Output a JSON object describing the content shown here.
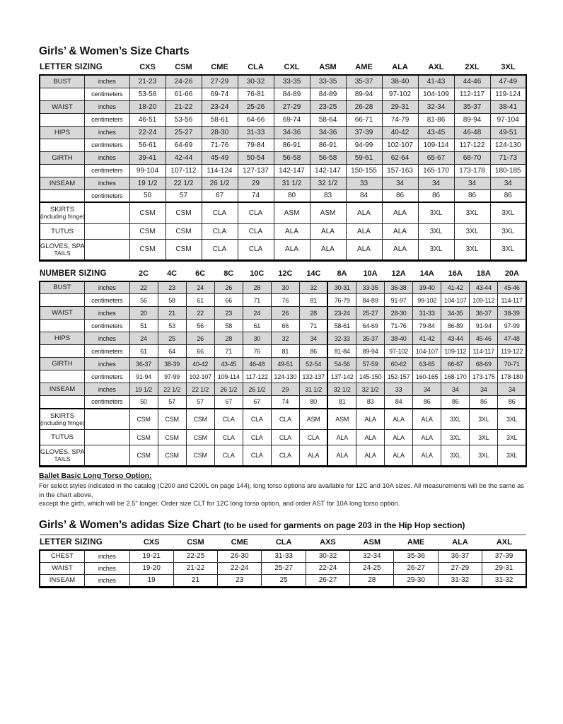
{
  "page": {
    "title": "Girls’ & Women’s Size Charts",
    "ballet_note": {
      "title": "Ballet Basic Long Torso Option:",
      "lines": [
        "For select styles indicated in the catalog (C200 and C200L on page 144), long torso options are available for 12C and 10A sizes. All measurements will be the same as in the chart above,",
        "except the girth, which will be 2.5\" longer. Order size CLT for 12C long torso option, and order AST for 10A long torso option."
      ]
    },
    "adidas_title": "Girls’ & Women’s adidas Size Chart",
    "adidas_title_note": "(to be used for garments on page 203 in the Hip Hop section)",
    "colors": {
      "row_shading": "#d8d8d8",
      "border": "#000000",
      "text": "#1a1a1a"
    }
  },
  "letter_table": {
    "header_label": "LETTER SIZING",
    "columns": [
      "CXS",
      "CSM",
      "CME",
      "CLA",
      "CXL",
      "ASM",
      "AME",
      "ALA",
      "AXL",
      "2XL",
      "3XL"
    ],
    "rows": [
      {
        "label": "BUST",
        "unit": "inches",
        "shaded": true,
        "values": [
          "21-23",
          "24-26",
          "27-29",
          "30-32",
          "33-35",
          "33-35",
          "35-37",
          "38-40",
          "41-43",
          "44-46",
          "47-49"
        ]
      },
      {
        "label": "",
        "unit": "centimeters",
        "shaded": false,
        "values": [
          "53-58",
          "61-66",
          "69-74",
          "76-81",
          "84-89",
          "84-89",
          "89-94",
          "97-102",
          "104-109",
          "112-117",
          "119-124"
        ]
      },
      {
        "label": "WAIST",
        "unit": "inches",
        "shaded": true,
        "values": [
          "18-20",
          "21-22",
          "23-24",
          "25-26",
          "27-29",
          "23-25",
          "26-28",
          "29-31",
          "32-34",
          "35-37",
          "38-41"
        ]
      },
      {
        "label": "",
        "unit": "centimeters",
        "shaded": false,
        "values": [
          "46-51",
          "53-56",
          "58-61",
          "64-66",
          "69-74",
          "58-64",
          "66-71",
          "74-79",
          "81-86",
          "89-94",
          "97-104"
        ]
      },
      {
        "label": "HIPS",
        "unit": "inches",
        "shaded": true,
        "values": [
          "22-24",
          "25-27",
          "28-30",
          "31-33",
          "34-36",
          "34-36",
          "37-39",
          "40-42",
          "43-45",
          "46-48",
          "49-51"
        ]
      },
      {
        "label": "",
        "unit": "centimeters",
        "shaded": false,
        "values": [
          "56-61",
          "64-69",
          "71-76",
          "79-84",
          "86-91",
          "86-91",
          "94-99",
          "102-107",
          "109-114",
          "117-122",
          "124-130"
        ]
      },
      {
        "label": "GIRTH",
        "unit": "inches",
        "shaded": true,
        "values": [
          "39-41",
          "42-44",
          "45-49",
          "50-54",
          "56-58",
          "56-58",
          "59-61",
          "62-64",
          "65-67",
          "68-70",
          "71-73"
        ]
      },
      {
        "label": "",
        "unit": "centimeters",
        "shaded": false,
        "values": [
          "99-104",
          "107-112",
          "114-124",
          "127-137",
          "142-147",
          "142-147",
          "150-155",
          "157-163",
          "165-170",
          "173-178",
          "180-185"
        ]
      },
      {
        "label": "INSEAM",
        "unit": "inches",
        "shaded": true,
        "values": [
          "19 1/2",
          "22 1/2",
          "26 1/2",
          "29",
          "31 1/2",
          "32 1/2",
          "33",
          "34",
          "34",
          "34",
          "34"
        ]
      },
      {
        "label": "",
        "unit": "centimeters",
        "shaded": false,
        "values": [
          "50",
          "57",
          "67",
          "74",
          "80",
          "83",
          "84",
          "86",
          "86",
          "86",
          "86"
        ]
      }
    ],
    "special_rows": [
      {
        "label": "SKIRTS",
        "sublabel": "(including fringe)",
        "values": [
          "CSM",
          "CSM",
          "CLA",
          "CLA",
          "ASM",
          "ASM",
          "ALA",
          "ALA",
          "3XL",
          "3XL",
          "3XL"
        ]
      },
      {
        "label": "TUTUS",
        "sublabel": "",
        "values": [
          "CSM",
          "CSM",
          "CLA",
          "CLA",
          "ALA",
          "ALA",
          "ALA",
          "ALA",
          "3XL",
          "3XL",
          "3XL"
        ]
      },
      {
        "label": "GLOVES, SPATS,",
        "sublabel": "TAILS",
        "values": [
          "CSM",
          "CSM",
          "CLA",
          "CLA",
          "ALA",
          "ALA",
          "ALA",
          "ALA",
          "3XL",
          "3XL",
          "3XL"
        ]
      }
    ]
  },
  "number_table": {
    "header_label": "NUMBER SIZING",
    "adult_start": 7,
    "columns": [
      "2C",
      "4C",
      "6C",
      "8C",
      "10C",
      "12C",
      "14C",
      "8A",
      "10A",
      "12A",
      "14A",
      "16A",
      "18A",
      "20A"
    ],
    "rows": [
      {
        "label": "BUST",
        "unit": "inches",
        "shaded": true,
        "values": [
          "22",
          "23",
          "24",
          "26",
          "28",
          "30",
          "32",
          "30-31",
          "33-35",
          "36-38",
          "39-40",
          "41-42",
          "43-44",
          "45-46"
        ]
      },
      {
        "label": "",
        "unit": "centimeters",
        "shaded": false,
        "values": [
          "56",
          "58",
          "61",
          "66",
          "71",
          "76",
          "81",
          "76-79",
          "84-89",
          "91-97",
          "99-102",
          "104-107",
          "109-112",
          "114-117"
        ]
      },
      {
        "label": "WAIST",
        "unit": "inches",
        "shaded": true,
        "values": [
          "20",
          "21",
          "22",
          "23",
          "24",
          "26",
          "28",
          "23-24",
          "25-27",
          "28-30",
          "31-33",
          "34-35",
          "36-37",
          "38-39"
        ]
      },
      {
        "label": "",
        "unit": "centimeters",
        "shaded": false,
        "values": [
          "51",
          "53",
          "56",
          "58",
          "61",
          "66",
          "71",
          "58-61",
          "64-69",
          "71-76",
          "79-84",
          "86-89",
          "91-94",
          "97-99"
        ]
      },
      {
        "label": "HIPS",
        "unit": "inches",
        "shaded": true,
        "values": [
          "24",
          "25",
          "26",
          "28",
          "30",
          "32",
          "34",
          "32-33",
          "35-37",
          "38-40",
          "41-42",
          "43-44",
          "45-46",
          "47-48"
        ]
      },
      {
        "label": "",
        "unit": "centimeters",
        "shaded": false,
        "values": [
          "61",
          "64",
          "66",
          "71",
          "76",
          "81",
          "86",
          "81-84",
          "89-94",
          "97-102",
          "104-107",
          "109-112",
          "114-117",
          "119-122"
        ]
      },
      {
        "label": "GIRTH",
        "unit": "inches",
        "shaded": true,
        "values": [
          "36-37",
          "38-39",
          "40-42",
          "43-45",
          "46-48",
          "49-51",
          "52-54",
          "54-56",
          "57-59",
          "60-62",
          "63-65",
          "66-67",
          "68-69",
          "70-71"
        ]
      },
      {
        "label": "",
        "unit": "centimeters",
        "shaded": false,
        "values": [
          "91-94",
          "97-99",
          "102-107",
          "109-114",
          "117-122",
          "124-130",
          "132-137",
          "137-142",
          "145-150",
          "152-157",
          "160-165",
          "168-170",
          "173-175",
          "178-180"
        ]
      },
      {
        "label": "INSEAM",
        "unit": "inches",
        "shaded": true,
        "values": [
          "19 1/2",
          "22 1/2",
          "22 1/2",
          "26 1/2",
          "26 1/2",
          "29",
          "31 1/2",
          "32 1/2",
          "32 1/2",
          "33",
          "34",
          "34",
          "34",
          "34"
        ]
      },
      {
        "label": "",
        "unit": "centimeters",
        "shaded": false,
        "values": [
          "50",
          "57",
          "57",
          "67",
          "67",
          "74",
          "80",
          "81",
          "83",
          "84",
          "86",
          "86",
          "86",
          "86"
        ]
      }
    ],
    "special_rows": [
      {
        "label": "SKIRTS",
        "sublabel": "(including fringe)",
        "values": [
          "CSM",
          "CSM",
          "CSM",
          "CLA",
          "CLA",
          "CLA",
          "ASM",
          "ASM",
          "ALA",
          "ALA",
          "ALA",
          "3XL",
          "3XL",
          "3XL"
        ]
      },
      {
        "label": "TUTUS",
        "sublabel": "",
        "values": [
          "CSM",
          "CSM",
          "CSM",
          "CLA",
          "CLA",
          "CLA",
          "CLA",
          "ALA",
          "ALA",
          "ALA",
          "ALA",
          "3XL",
          "3XL",
          "3XL"
        ]
      },
      {
        "label": "GLOVES, SPATS,",
        "sublabel": "TAILS",
        "values": [
          "CSM",
          "CSM",
          "CSM",
          "CLA",
          "CLA",
          "CLA",
          "ALA",
          "ALA",
          "ALA",
          "ALA",
          "ALA",
          "3XL",
          "3XL",
          "3XL"
        ]
      }
    ]
  },
  "adidas_table": {
    "header_label": "LETTER SIZING",
    "columns": [
      "CXS",
      "CSM",
      "CME",
      "CLA",
      "AXS",
      "ASM",
      "AME",
      "ALA",
      "AXL"
    ],
    "rows": [
      {
        "label": "CHEST",
        "unit": "inches",
        "shaded": false,
        "values": [
          "19-21",
          "22-25",
          "26-30",
          "31-33",
          "30-32",
          "32-34",
          "35-36",
          "36-37",
          "37-39"
        ]
      },
      {
        "label": "WAIST",
        "unit": "inches",
        "shaded": false,
        "values": [
          "19-20",
          "21-22",
          "22-24",
          "25-27",
          "22-24",
          "24-25",
          "26-27",
          "27-29",
          "29-31"
        ]
      },
      {
        "label": "INSEAM",
        "unit": "inches",
        "shaded": false,
        "values": [
          "19",
          "21",
          "23",
          "25",
          "26-27",
          "28",
          "29-30",
          "31-32",
          "31-32"
        ]
      }
    ],
    "special_rows": []
  }
}
